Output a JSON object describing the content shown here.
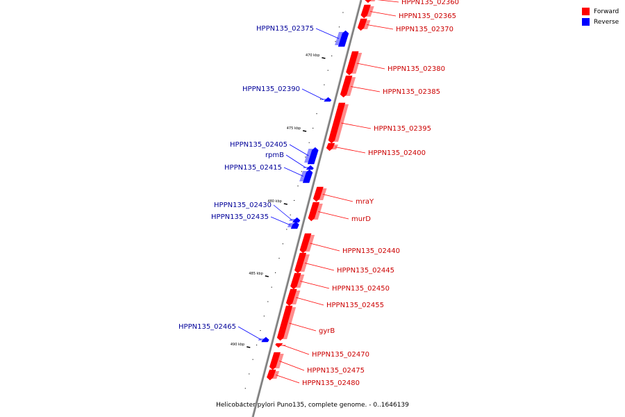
{
  "caption": "Helicobacter pylori Puno135, complete genome. - 0..1646139",
  "colors": {
    "forward": "#ff0000",
    "reverse": "#0000ff",
    "backbone": "#7f7f7f",
    "forward_label": "#cc0000",
    "reverse_label": "#000099"
  },
  "legend": [
    {
      "label": "Forward",
      "strand": "forward",
      "color": "#ff0000"
    },
    {
      "label": "Reverse",
      "strand": "reverse",
      "color": "#0000ff"
    }
  ],
  "ticks": [
    {
      "label": "470 kbp"
    },
    {
      "label": "475 kbp"
    },
    {
      "label": "480 kbp"
    },
    {
      "label": "485 kbp"
    },
    {
      "label": "490 kbp"
    }
  ],
  "genes": [
    {
      "name": "HPPN135_02360",
      "strand": "forward"
    },
    {
      "name": "HPPN135_02365",
      "strand": "forward"
    },
    {
      "name": "HPPN135_02370",
      "strand": "forward"
    },
    {
      "name": "HPPN135_02375",
      "strand": "reverse"
    },
    {
      "name": "HPPN135_02380",
      "strand": "forward"
    },
    {
      "name": "HPPN135_02385",
      "strand": "forward"
    },
    {
      "name": "HPPN135_02390",
      "strand": "reverse"
    },
    {
      "name": "HPPN135_02395",
      "strand": "forward"
    },
    {
      "name": "HPPN135_02400",
      "strand": "forward"
    },
    {
      "name": "HPPN135_02405",
      "strand": "reverse"
    },
    {
      "name": "rpmB",
      "strand": "reverse"
    },
    {
      "name": "HPPN135_02415",
      "strand": "reverse"
    },
    {
      "name": "mraY",
      "strand": "forward"
    },
    {
      "name": "HPPN135_02430",
      "strand": "reverse"
    },
    {
      "name": "murD",
      "strand": "forward"
    },
    {
      "name": "HPPN135_02435",
      "strand": "reverse"
    },
    {
      "name": "HPPN135_02440",
      "strand": "forward"
    },
    {
      "name": "HPPN135_02445",
      "strand": "forward"
    },
    {
      "name": "HPPN135_02450",
      "strand": "forward"
    },
    {
      "name": "HPPN135_02455",
      "strand": "forward"
    },
    {
      "name": "gyrB",
      "strand": "forward"
    },
    {
      "name": "HPPN135_02465",
      "strand": "reverse"
    },
    {
      "name": "HPPN135_02470",
      "strand": "forward"
    },
    {
      "name": "HPPN135_02475",
      "strand": "forward"
    },
    {
      "name": "HPPN135_02480",
      "strand": "forward"
    }
  ]
}
